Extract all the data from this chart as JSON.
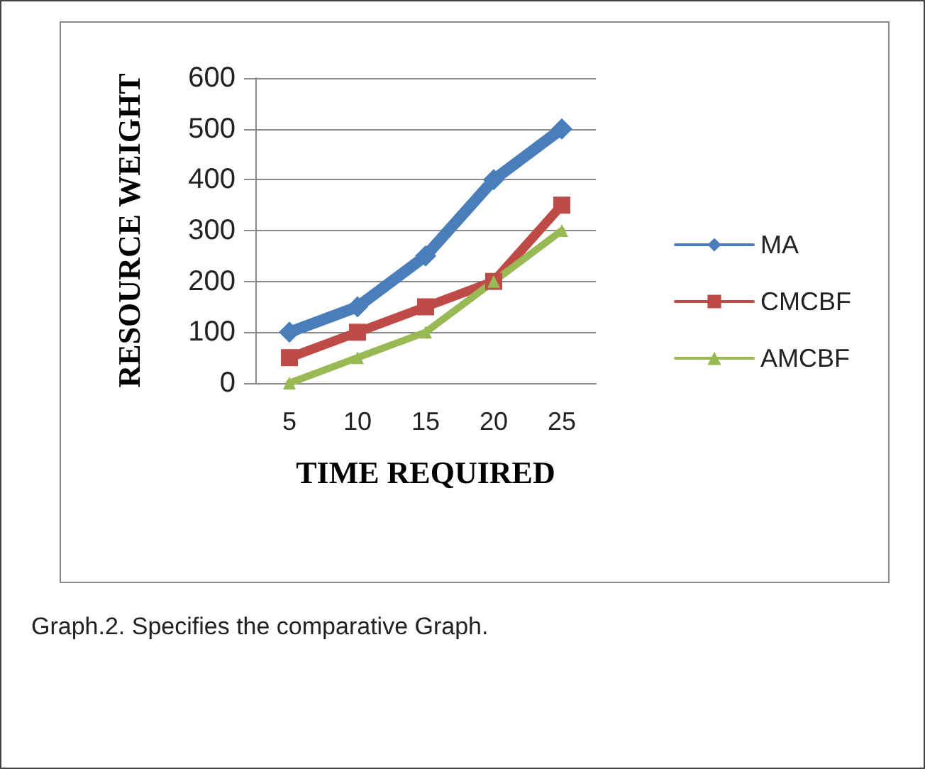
{
  "chart_data": {
    "type": "line",
    "xlabel": "TIME REQUIRED",
    "ylabel": "RESOURCE WEIGHT",
    "categories": [
      "5",
      "10",
      "15",
      "20",
      "25"
    ],
    "series": [
      {
        "name": "MA",
        "color": "#4a7ebb",
        "values": [
          100,
          150,
          250,
          400,
          500
        ],
        "marker": "diamond"
      },
      {
        "name": "CMCBF",
        "color": "#be4b48",
        "values": [
          50,
          100,
          150,
          200,
          350
        ],
        "marker": "square"
      },
      {
        "name": "AMCBF",
        "color": "#98b954",
        "values": [
          0,
          50,
          100,
          200,
          300
        ],
        "marker": "triangle"
      }
    ],
    "ylim": [
      0,
      600
    ],
    "yticks": [
      0,
      100,
      200,
      300,
      400,
      500,
      600
    ],
    "grid": "y",
    "legend": "right",
    "annotations": [
      "Graph.2. Specifies the comparative Graph."
    ]
  }
}
